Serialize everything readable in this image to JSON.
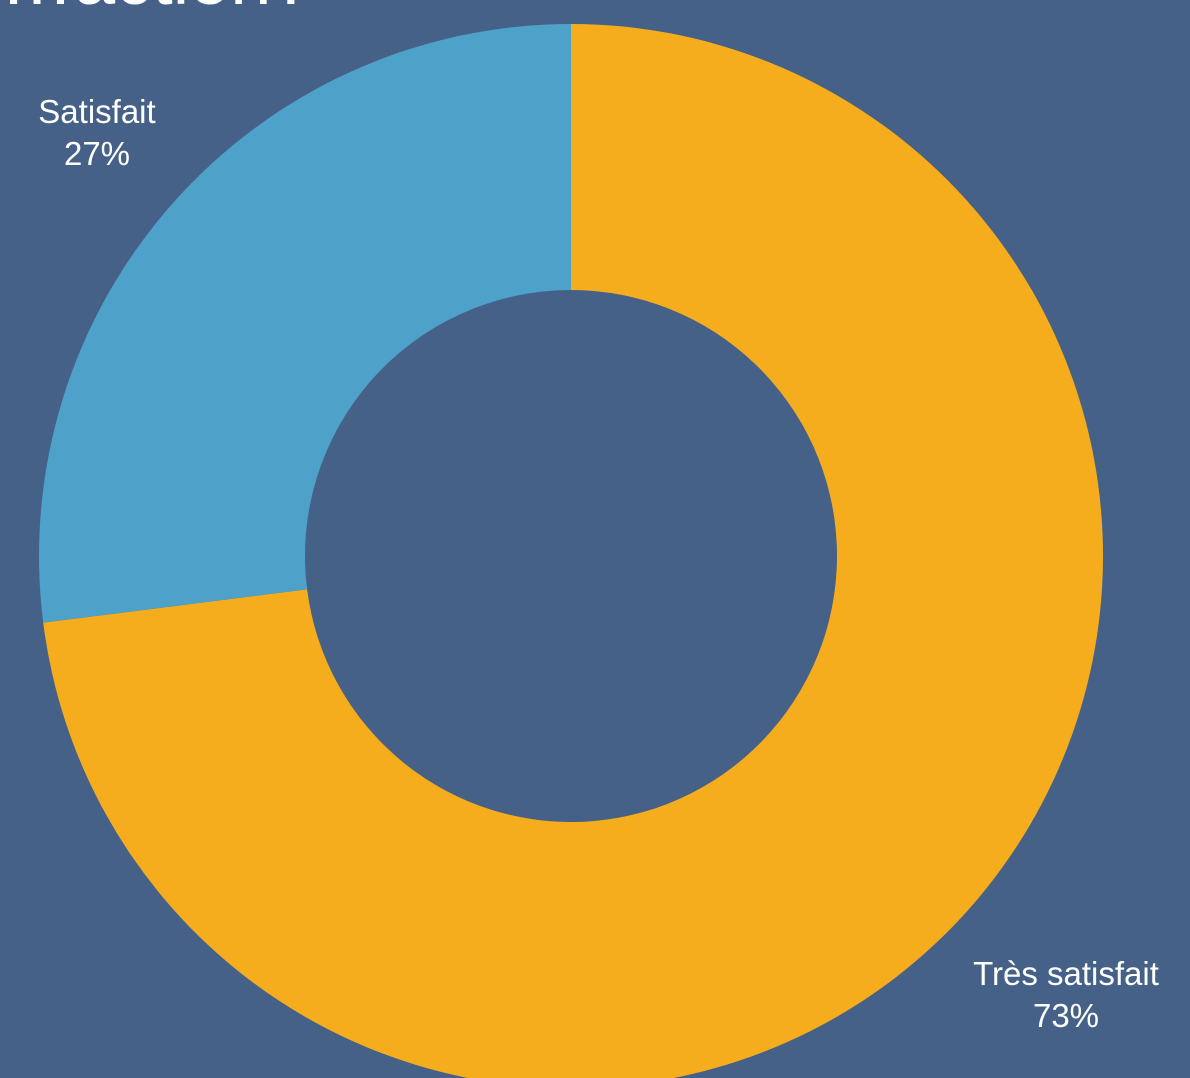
{
  "chart_data": {
    "type": "pie",
    "subtype": "donut",
    "title": "…action?",
    "slices": [
      {
        "label": "Très satisfait",
        "percent_label": "73%",
        "value": 73,
        "color": "#F6AD1D"
      },
      {
        "label": "Satisfait",
        "percent_label": "27%",
        "value": 27,
        "color": "#4EA1C8"
      }
    ],
    "colors": {
      "background": "#466188",
      "text": "#FFFFFF"
    },
    "legend": "none"
  }
}
